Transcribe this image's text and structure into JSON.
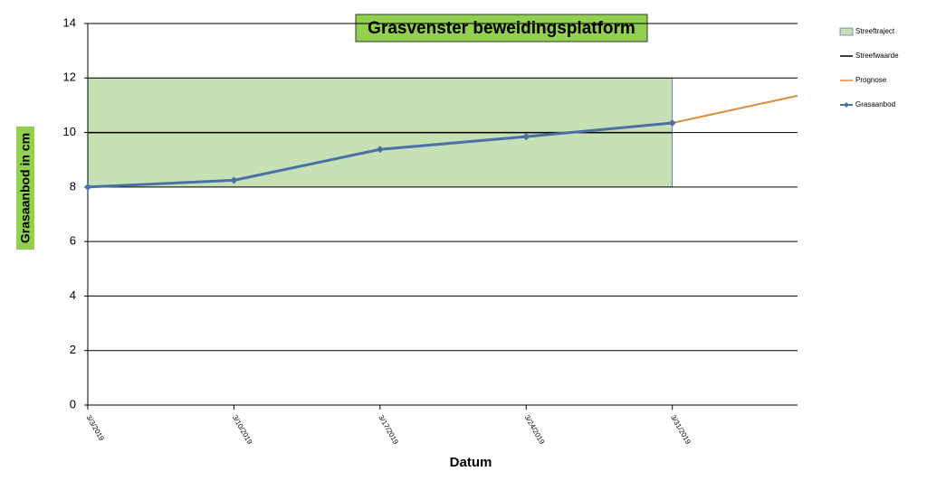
{
  "chart_data": {
    "type": "line",
    "title": "Grasvenster beweidingsplatform",
    "x_label": "Datum",
    "y_label": "Grasaanbod in cm",
    "xlim": [
      "3/3/2019",
      "4/6/2019"
    ],
    "xticks": [
      "3/3/2019",
      "3/10/2019",
      "3/17/2019",
      "3/24/2019",
      "3/31/2019"
    ],
    "ylim": [
      0,
      14
    ],
    "yticks": [
      0,
      2,
      4,
      6,
      8,
      10,
      12,
      14
    ],
    "grid": true,
    "legend": "right",
    "series": [
      {
        "name": "Streeftraject",
        "type": "range",
        "color": "#c5e0b4",
        "x": [
          "3/3/2019",
          "3/31/2019"
        ],
        "low": [
          8,
          8
        ],
        "high": [
          12,
          12
        ]
      },
      {
        "name": "Streefwaarde",
        "type": "line",
        "color": "#000000",
        "x": [
          "3/3/2019",
          "3/31/2019"
        ],
        "values": [
          10,
          10
        ]
      },
      {
        "name": "Prognose",
        "type": "line",
        "color": "#e08a3c",
        "x": [
          "3/31/2019",
          "4/6/2019"
        ],
        "values": [
          10.35,
          11.35
        ]
      },
      {
        "name": "Grasaanbod",
        "type": "line-marker",
        "color": "#4a6fa5",
        "x": [
          "3/3/2019",
          "3/10/2019",
          "3/17/2019",
          "3/24/2019",
          "3/31/2019"
        ],
        "values": [
          8,
          8.25,
          9.38,
          9.85,
          10.35
        ]
      }
    ]
  }
}
